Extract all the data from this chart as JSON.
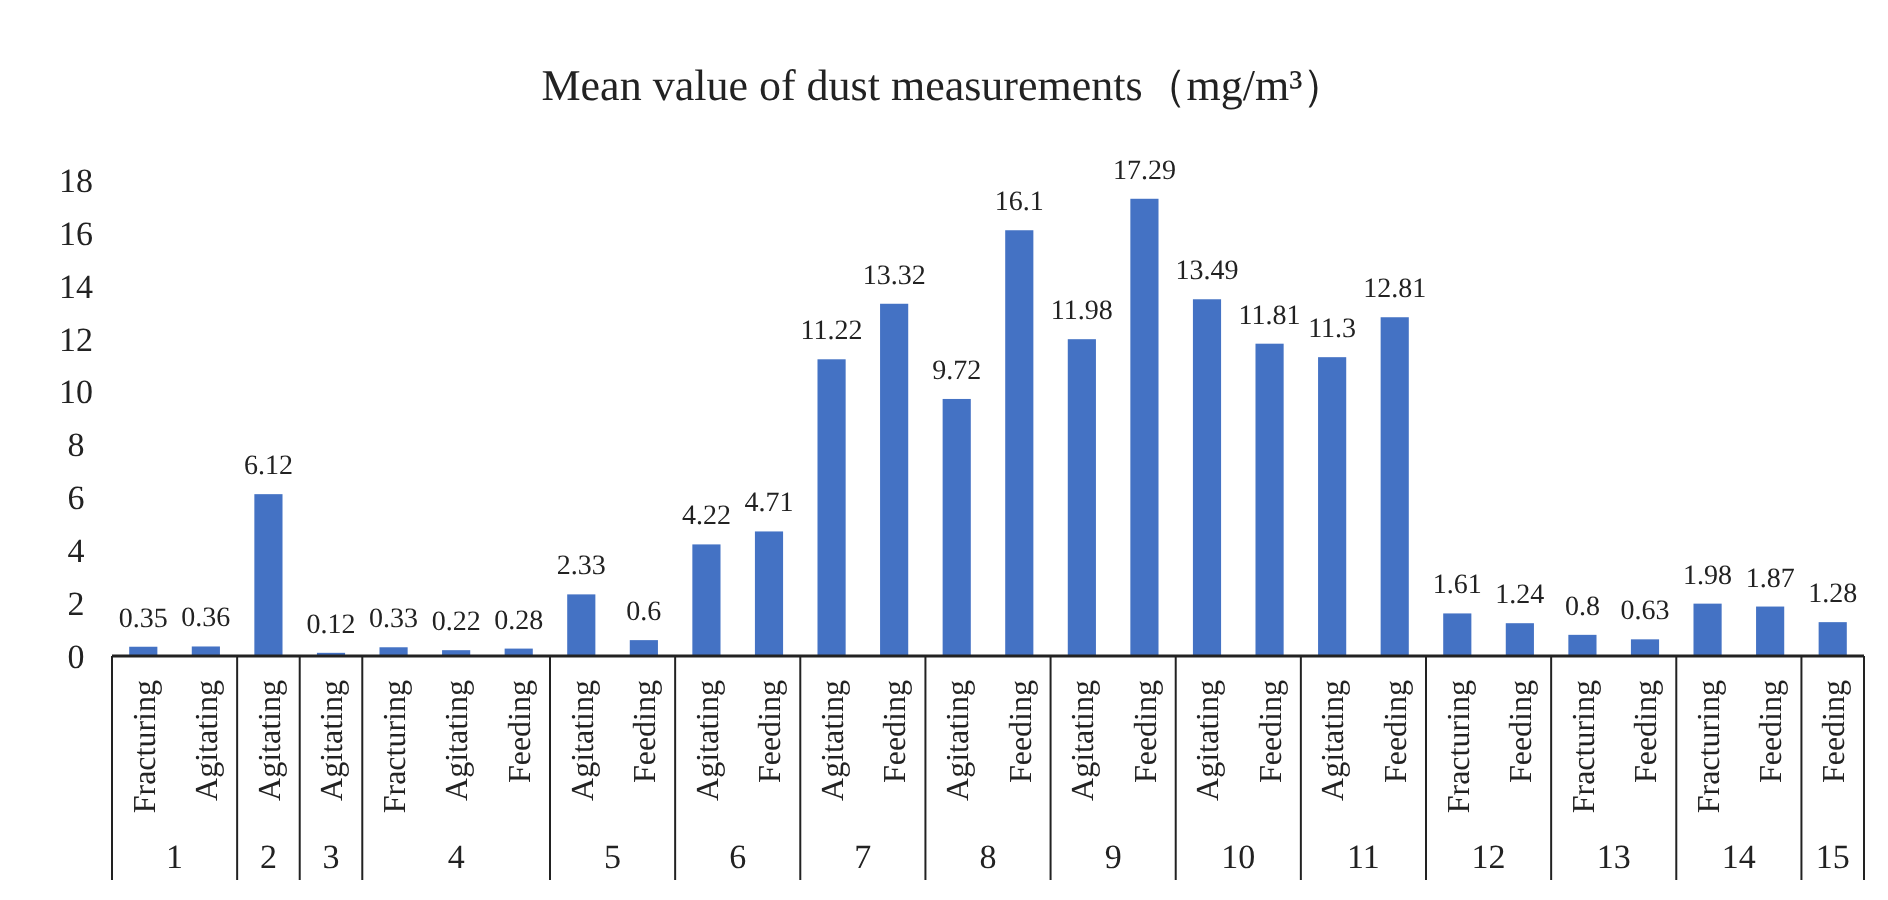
{
  "chart_data": {
    "type": "bar",
    "title": "Mean value of dust measurements（mg/m³）",
    "categories": [
      "Fracturing",
      "Agitating",
      "Agitating",
      "Agitating",
      "Fracturing",
      "Agitating",
      "Feeding",
      "Agitating",
      "Feeding",
      "Agitating",
      "Feeding",
      "Agitating",
      "Feeding",
      "Agitating",
      "Feeding",
      "Agitating",
      "Feeding",
      "Agitating",
      "Feeding",
      "Agitating",
      "Feeding",
      "Fracturing",
      "Feeding",
      "Fracturing",
      "Feeding",
      "Fracturing",
      "Feeding",
      "Feeding"
    ],
    "values": [
      0.35,
      0.36,
      6.12,
      0.12,
      0.33,
      0.22,
      0.28,
      2.33,
      0.6,
      4.22,
      4.71,
      11.22,
      13.32,
      9.72,
      16.1,
      11.98,
      17.29,
      13.49,
      11.81,
      11.3,
      12.81,
      1.61,
      1.24,
      0.8,
      0.63,
      1.98,
      1.87,
      1.28
    ],
    "color": "#4472c4",
    "ylim": [
      0,
      18
    ],
    "yticks": [
      0,
      2,
      4,
      6,
      8,
      10,
      12,
      14,
      16,
      18
    ],
    "grid": false,
    "data_labels": true,
    "annotations": [
      "1",
      "2",
      "3",
      "4",
      "5",
      "6",
      "7",
      "8",
      "9",
      "10",
      "11",
      "12",
      "13",
      "14",
      "15"
    ]
  }
}
